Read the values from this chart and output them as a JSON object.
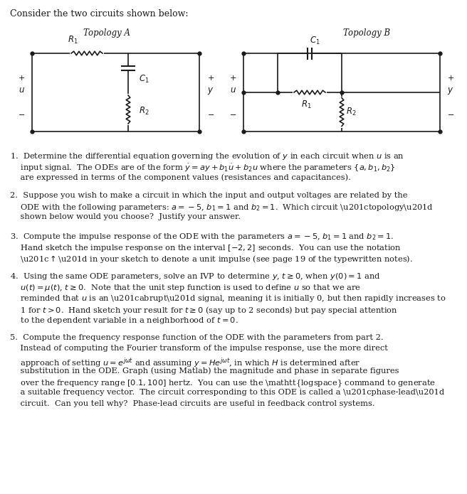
{
  "background": "#f5f5f0",
  "lc": "#1a1a1a",
  "lw": 1.2,
  "fig_w": 6.56,
  "fig_h": 6.95,
  "header": "Consider the two circuits shown below:",
  "topoA_label": "Topology A",
  "topoB_label": "Topology B",
  "para1_lines": [
    "1.  Determine the differential equation governing the evolution of y in each circuit when u is an",
    "    input signal. The ODEs are of the form ẏ = ay + b₁u̇ + b₂u where the parameters {a, b₁, b₂}",
    "    are expressed in terms of the component values (resistances and capacitances)."
  ],
  "para2_lines": [
    "2.  Suppose you wish to make a circuit in which the input and output voltages are related by the",
    "    ODE with the following parameters: a = −5, b₁ = 1 and b₂ = 1.  Which circuit “topology”",
    "    shown below would you choose? Justify your answer."
  ],
  "para3_lines": [
    "3.  Compute the impulse response of the ODE with the parameters a = −5, b₁ = 1 and b₂ = 1.",
    "    Hand sketch the impulse response on the interval [−2, 2] seconds.  You can use the notation",
    "    “↑” in your sketch to denote a unit impulse (see page 19 of the typewritten notes)."
  ],
  "para4_lines": [
    "4.  Using the same ODE parameters, solve an IVP to determine y, t ≥ 0, when y(0) = 1 and",
    "    u(t) = μ(t), t ≥ 0.  Note that the unit step function is used to define u so that we are",
    "    reminded that u is an “abrupt” signal, meaning it is initially 0, but then rapidly increases to",
    "    1 for t > 0.  Hand sketch your result for t ≥ 0 (say up to 2 seconds) but pay special attention",
    "    to the dependent variable in a neighborhood of t = 0."
  ],
  "para5_lines": [
    "5.  Compute the frequency response function of the ODE with the parameters from part 2.",
    "    Instead of computing the Fourier transform of the impulse response, use the more direct",
    "    approach of setting u = eʲᵜt and assuming y = Heʲᵜt, in which H is determined after",
    "    substitution in the ODE. Graph (using Matlab) the magnitude and phase in separate figures",
    "    over the frequency range [0.1, 100] hertz.  You can use the logspace command to generate",
    "    a suitable frequency vector.  The circuit corresponding to this ODE is called a “phase-lead”",
    "    circuit.  Can you tell why? Phase-lead circuits are useful in feedback control systems."
  ]
}
